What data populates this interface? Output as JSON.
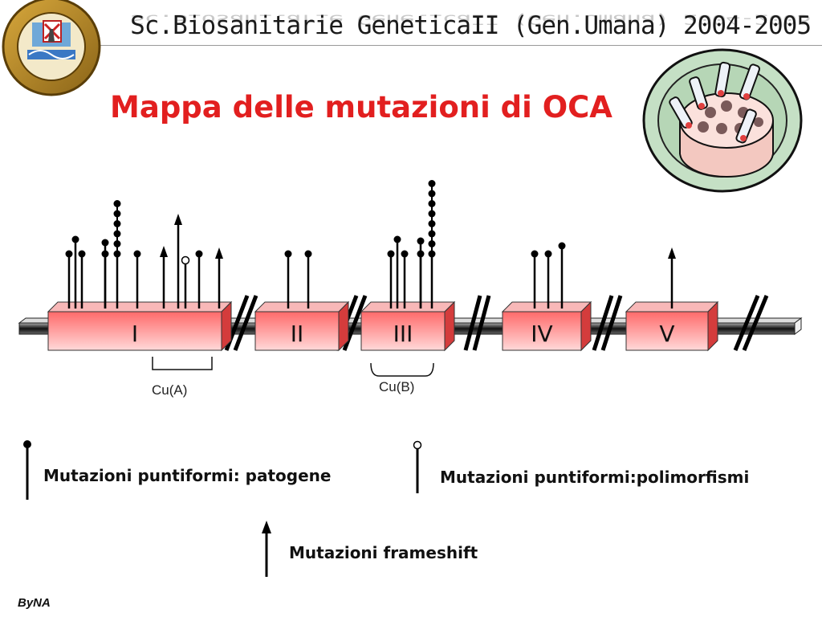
{
  "header": {
    "title": "Sc.Biosanitarie GeneticaII (Gen.Umana) 2004-2005"
  },
  "main_title": "Mappa delle mutazioni di OCA",
  "exons": [
    {
      "label": "I"
    },
    {
      "label": "II"
    },
    {
      "label": "III"
    },
    {
      "label": "IV"
    },
    {
      "label": "V"
    }
  ],
  "regions": [
    {
      "label": "Cu(A)"
    },
    {
      "label": "Cu(B)"
    }
  ],
  "legend": {
    "pathogenic": "Mutazioni puntiformi: patogene",
    "polymorphism": "Mutazioni puntiformi:polimorfismi",
    "frameshift": "Mutazioni frameshift"
  },
  "author": "ByNA",
  "colors": {
    "title": "#e21f1f",
    "exon_fill": "#f07878",
    "exon_top": "#f8b8b8",
    "exon_side": "#d43c3c"
  }
}
